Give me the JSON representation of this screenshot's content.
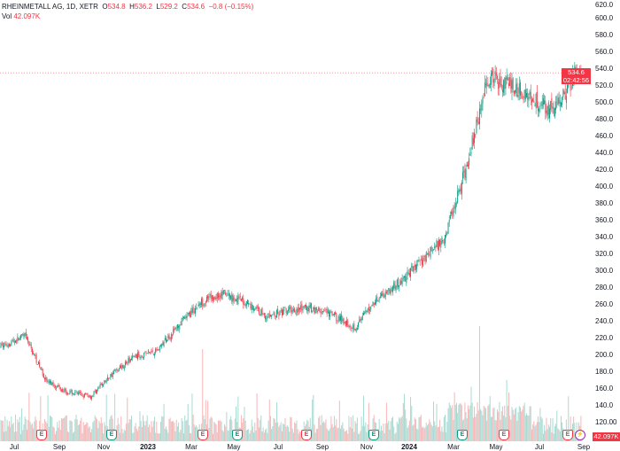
{
  "header": {
    "symbol": "RHEINMETALL AG, 1D, XETR",
    "o_label": "O",
    "o": "534.8",
    "h_label": "H",
    "h": "536.2",
    "l_label": "L",
    "l": "529.2",
    "c_label": "C",
    "c": "534.6",
    "change": "−0.8 (−0.15%)",
    "vol_label": "Vol",
    "vol": "42.097K"
  },
  "price_tag": {
    "price": "534.6",
    "countdown": "02:42:56"
  },
  "volume_tag": "42.097K",
  "colors": {
    "up": "#089981",
    "down": "#f23645",
    "up_vol": "#a8dbd2",
    "down_vol": "#f7b6b7"
  },
  "chart_data": {
    "type": "candlestick",
    "y_ticks": [
      "620.0",
      "600.0",
      "580.0",
      "560.0",
      "540.0",
      "520.0",
      "500.0",
      "480.0",
      "460.0",
      "440.0",
      "420.0",
      "400.0",
      "380.0",
      "360.0",
      "340.0",
      "320.0",
      "300.0",
      "280.0",
      "260.0",
      "240.0",
      "220.0",
      "200.0",
      "180.0",
      "160.0",
      "140.0",
      "120.00"
    ],
    "ylim": [
      120,
      620
    ],
    "x_ticks": [
      "Jul",
      "Sep",
      "Nov",
      "2023",
      "Mar",
      "May",
      "Jul",
      "Sep",
      "Nov",
      "2024",
      "Mar",
      "May",
      "Jul",
      "Sep"
    ],
    "monthly_close": [
      {
        "x": "2022-06",
        "y": 210
      },
      {
        "x": "2022-07",
        "y": 222
      },
      {
        "x": "2022-08",
        "y": 168
      },
      {
        "x": "2022-09",
        "y": 155
      },
      {
        "x": "2022-10",
        "y": 150
      },
      {
        "x": "2022-11",
        "y": 178
      },
      {
        "x": "2022-12",
        "y": 198
      },
      {
        "x": "2023-01",
        "y": 205
      },
      {
        "x": "2023-02",
        "y": 235
      },
      {
        "x": "2023-03",
        "y": 262
      },
      {
        "x": "2023-04",
        "y": 272
      },
      {
        "x": "2023-05",
        "y": 262
      },
      {
        "x": "2023-06",
        "y": 245
      },
      {
        "x": "2023-07",
        "y": 252
      },
      {
        "x": "2023-08",
        "y": 255
      },
      {
        "x": "2023-09",
        "y": 246
      },
      {
        "x": "2023-10",
        "y": 232
      },
      {
        "x": "2023-11",
        "y": 268
      },
      {
        "x": "2023-12",
        "y": 285
      },
      {
        "x": "2024-01",
        "y": 312
      },
      {
        "x": "2024-02",
        "y": 338
      },
      {
        "x": "2024-03",
        "y": 420
      },
      {
        "x": "2024-04",
        "y": 530
      },
      {
        "x": "2024-05",
        "y": 520
      },
      {
        "x": "2024-06",
        "y": 505
      },
      {
        "x": "2024-07",
        "y": 490
      },
      {
        "x": "2024-08",
        "y": 534.6
      }
    ],
    "last": 534.6,
    "events": [
      {
        "type": "E",
        "color": "red"
      },
      {
        "type": "E",
        "color": "green"
      },
      {
        "type": "E",
        "color": "red"
      },
      {
        "type": "E",
        "color": "green"
      },
      {
        "type": "E",
        "color": "red"
      },
      {
        "type": "E",
        "color": "green"
      },
      {
        "type": "E",
        "color": "green"
      },
      {
        "type": "E",
        "color": "red"
      },
      {
        "type": "E",
        "color": "red"
      },
      {
        "type": "split",
        "color": "purple"
      }
    ]
  }
}
